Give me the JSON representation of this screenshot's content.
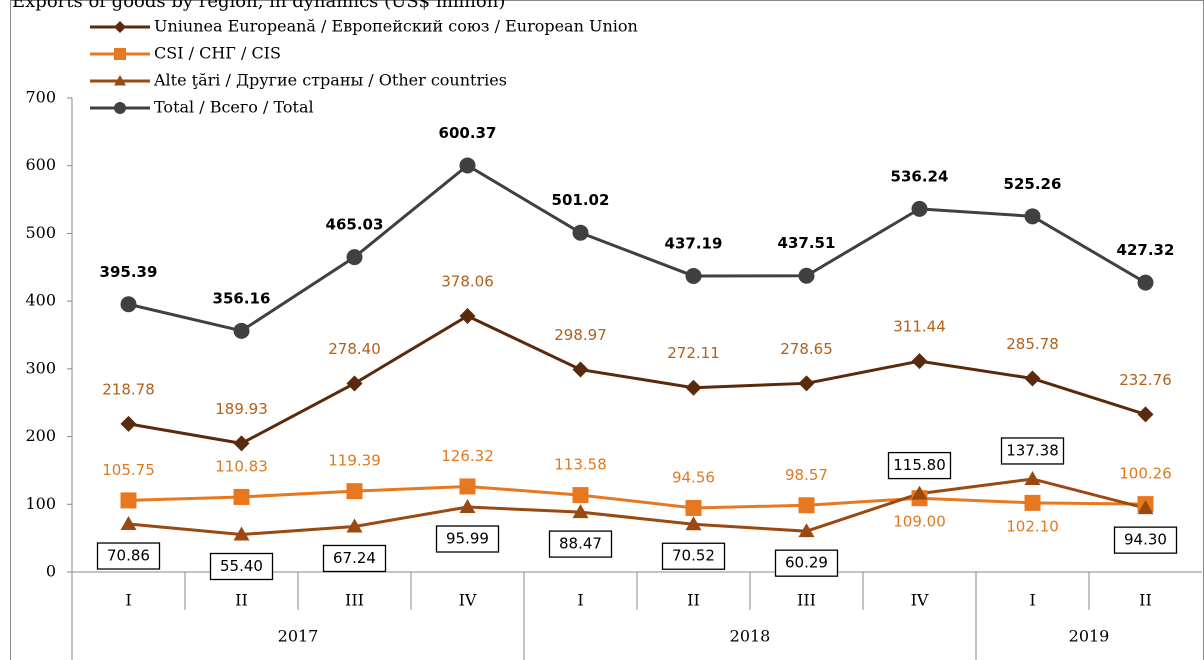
{
  "chart_data": {
    "type": "line",
    "title": "Exports of goods by region, in dynamics (US$ million)",
    "category_groups": [
      {
        "name": "2017",
        "categories": [
          "I",
          "II",
          "III",
          "IV"
        ]
      },
      {
        "name": "2018",
        "categories": [
          "I",
          "II",
          "III",
          "IV"
        ]
      },
      {
        "name": "2019",
        "categories": [
          "I",
          "II"
        ]
      }
    ],
    "series": [
      {
        "name": "Uniunea Europeană / Европейский союз / European Union",
        "color": "#5a2a0c",
        "marker": "diamond",
        "label_color": "#b3601a",
        "values": [
          218.78,
          189.93,
          278.4,
          378.06,
          298.97,
          272.11,
          278.65,
          311.44,
          285.78,
          232.76
        ],
        "value_labels": [
          "218.78",
          "189.93",
          "278.40",
          "378.06",
          "298.97",
          "272.11",
          "278.65",
          "311.44",
          "285.78",
          "232.76"
        ]
      },
      {
        "name": "CSI / СНГ / CIS",
        "color": "#e8781f",
        "marker": "square",
        "label_color": "#e07a1f",
        "values": [
          105.75,
          110.83,
          119.39,
          126.32,
          113.58,
          94.56,
          98.57,
          109.0,
          102.1,
          100.26
        ],
        "value_labels": [
          "105.75",
          "110.83",
          "119.39",
          "126.32",
          "113.58",
          "94.56",
          "98.57",
          "109.00",
          "102.10",
          "100.26"
        ]
      },
      {
        "name": "Alte ţări / Другие страны / Other countries",
        "color": "#9a4a10",
        "marker": "triangle",
        "label_color": "#000000",
        "values": [
          70.86,
          55.4,
          67.24,
          95.99,
          88.47,
          70.52,
          60.29,
          115.8,
          137.38,
          94.3
        ],
        "value_labels": [
          "70.86",
          "55.40",
          "67.24",
          "95.99",
          "88.47",
          "70.52",
          "60.29",
          "115.80",
          "137.38",
          "94.30"
        ]
      },
      {
        "name": "Total / Всего / Total",
        "color": "#404040",
        "marker": "circle",
        "label_color": "#000000",
        "values": [
          395.39,
          356.16,
          465.03,
          600.37,
          501.02,
          437.19,
          437.51,
          536.24,
          525.26,
          427.32
        ],
        "value_labels": [
          "395.39",
          "356.16",
          "465.03",
          "600.37",
          "501.02",
          "437.19",
          "437.51",
          "536.24",
          "525.26",
          "427.32"
        ]
      }
    ],
    "ylim": [
      0,
      700
    ],
    "yticks": [
      0,
      100,
      200,
      300,
      400,
      500,
      600,
      700
    ],
    "grid": false,
    "legend": "top-left"
  }
}
